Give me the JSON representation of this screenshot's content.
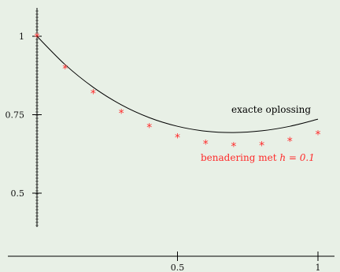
{
  "chart_data": {
    "type": "line",
    "title": "",
    "xlabel": "",
    "ylabel": "",
    "xlim": [
      -0.1,
      1.08
    ],
    "ylim": [
      0.38,
      1.12
    ],
    "x_ticks": [
      {
        "value": 0.5,
        "label": "0.5"
      },
      {
        "value": 1,
        "label": "1"
      }
    ],
    "y_ticks": [
      {
        "value": 1,
        "label": "1"
      },
      {
        "value": 0.75,
        "label": "0.75"
      },
      {
        "value": 0.5,
        "label": "0.5"
      }
    ],
    "series": [
      {
        "name": "exacte oplossing",
        "style": "line",
        "color": "#000000",
        "x": [
          0,
          0.1,
          0.2,
          0.3,
          0.4,
          0.5,
          0.6,
          0.7,
          0.8,
          0.9,
          1.0
        ],
        "y": [
          1.0,
          0.9097,
          0.8375,
          0.7816,
          0.7406,
          0.7131,
          0.6976,
          0.6932,
          0.6987,
          0.7131,
          0.7358
        ]
      },
      {
        "name": "benadering met h = 0.1",
        "style": "markers",
        "marker": "*",
        "color": "#ff2a2a",
        "x": [
          0,
          0.1,
          0.2,
          0.3,
          0.4,
          0.5,
          0.6,
          0.7,
          0.8,
          0.9,
          1.0
        ],
        "y": [
          1.0,
          0.9,
          0.82,
          0.758,
          0.712,
          0.68,
          0.66,
          0.652,
          0.655,
          0.668,
          0.69
        ]
      }
    ],
    "annotations": [
      {
        "text": "exacte oplossing",
        "color": "#000000"
      },
      {
        "text_prefix": "benadering met ",
        "math": "h = 0.1",
        "color": "#ff2a2a"
      }
    ],
    "legend": "none",
    "grid": false
  }
}
